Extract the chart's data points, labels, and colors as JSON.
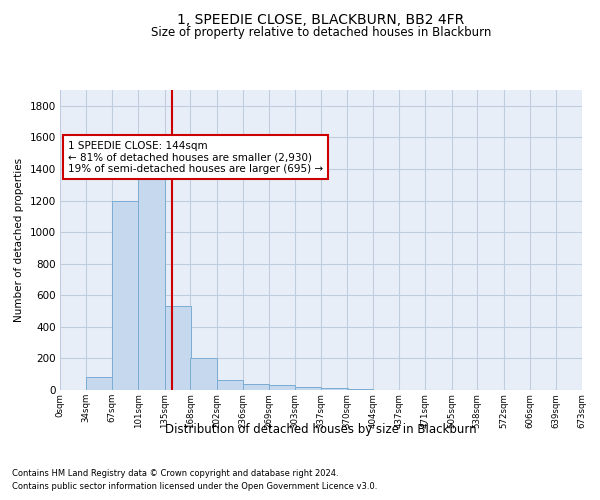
{
  "title": "1, SPEEDIE CLOSE, BLACKBURN, BB2 4FR",
  "subtitle": "Size of property relative to detached houses in Blackburn",
  "xlabel": "Distribution of detached houses by size in Blackburn",
  "ylabel": "Number of detached properties",
  "bar_color": "#c5d8ed",
  "bar_edge_color": "#7aadd4",
  "bins": [
    0,
    34,
    67,
    101,
    135,
    168,
    202,
    236,
    269,
    303,
    337,
    370,
    404,
    437,
    471,
    505,
    538,
    572,
    606,
    639,
    673
  ],
  "bin_labels": [
    "0sqm",
    "34sqm",
    "67sqm",
    "101sqm",
    "135sqm",
    "168sqm",
    "202sqm",
    "236sqm",
    "269sqm",
    "303sqm",
    "337sqm",
    "370sqm",
    "404sqm",
    "437sqm",
    "471sqm",
    "505sqm",
    "538sqm",
    "572sqm",
    "606sqm",
    "639sqm",
    "673sqm"
  ],
  "values": [
    0,
    85,
    1195,
    1455,
    530,
    205,
    65,
    40,
    30,
    20,
    15,
    5,
    3,
    0,
    0,
    0,
    0,
    0,
    0,
    0
  ],
  "ylim": [
    0,
    1900
  ],
  "yticks": [
    0,
    200,
    400,
    600,
    800,
    1000,
    1200,
    1400,
    1600,
    1800
  ],
  "vline_x": 144,
  "vline_color": "#cc0000",
  "annotation_text": "1 SPEEDIE CLOSE: 144sqm\n← 81% of detached houses are smaller (2,930)\n19% of semi-detached houses are larger (695) →",
  "annotation_box_color": "#ffffff",
  "annotation_box_edge": "#cc0000",
  "footer_line1": "Contains HM Land Registry data © Crown copyright and database right 2024.",
  "footer_line2": "Contains public sector information licensed under the Open Government Licence v3.0.",
  "fig_bg": "#ffffff",
  "plot_bg": "#e8eef7",
  "grid_color": "#c0cde0"
}
